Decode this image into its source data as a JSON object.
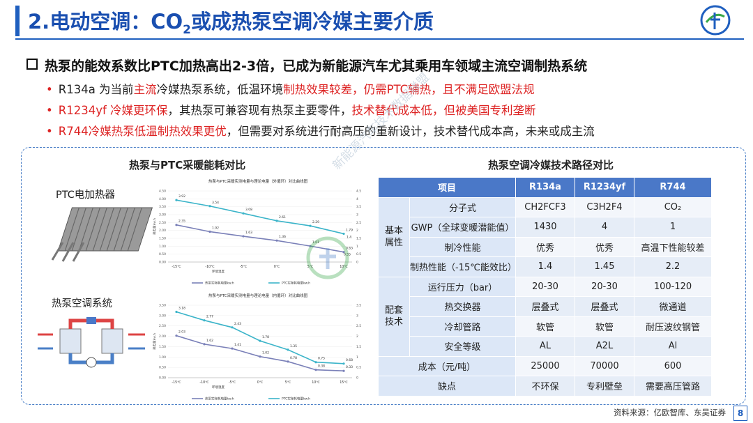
{
  "header": {
    "title_pre": "2.电动空调：CO",
    "title_sub": "2",
    "title_post": "或成热泵空调冷媒主要介质"
  },
  "bullets": {
    "main": "热泵的能效系数比PTC加热高出2-3倍，已成为新能源汽车尤其乘用车领域主流空调制热系统",
    "line1": {
      "dot": "•",
      "a": "R134a 为当前",
      "b": "主流",
      "c": "冷媒热泵系统，低温环境",
      "d": "制热效果较差，仍需PTC辅热，且不满足欧盟法规"
    },
    "line2": {
      "dot": "•",
      "a": "R1234yf 冷媒更环保",
      "b": "，其热泵可兼容现有热泵主要零件，",
      "c": "技术替代成本低，但被美国专利垄断"
    },
    "line3": {
      "dot": "•",
      "a": "R744冷媒热泵低温制热效果更优",
      "b": "，但需要对系统进行耐高压的重新设计，技术替代成本高，未来或成主流"
    }
  },
  "left": {
    "title": "热泵与PTC采暖能耗对比",
    "ptc_label": "PTC电加热器",
    "hp_label": "热泵空调系统"
  },
  "right": {
    "title": "热泵空调冷媒技术路径对比",
    "header": [
      "项目",
      "R134a",
      "R1234yf",
      "R744"
    ],
    "groups": [
      {
        "name": "基本属性",
        "rows": [
          {
            "label": "分子式",
            "v": [
              "CH2FCF3",
              "C3H2F4",
              "CO₂"
            ]
          },
          {
            "label": "GWP（全球变暖潜能值）",
            "v": [
              "1430",
              "4",
              "1"
            ]
          },
          {
            "label": "制冷性能",
            "v": [
              "优秀",
              "优秀",
              "高温下性能较差"
            ]
          },
          {
            "label": "制热性能（-15℃能效比）",
            "v": [
              "1.4",
              "1.45",
              "2.2"
            ]
          }
        ]
      },
      {
        "name": "配套技术",
        "rows": [
          {
            "label": "运行压力（bar）",
            "v": [
              "20-30",
              "20-30",
              "100-120"
            ]
          },
          {
            "label": "热交换器",
            "v": [
              "层叠式",
              "层叠式",
              "微通道"
            ]
          },
          {
            "label": "冷却管路",
            "v": [
              "软管",
              "软管",
              "耐压波纹钢管"
            ]
          },
          {
            "label": "安全等级",
            "v": [
              "AL",
              "A2L",
              "Al"
            ]
          }
        ]
      }
    ],
    "extra": [
      {
        "label": "成本（元/吨）",
        "v": [
          "25000",
          "70000",
          "600"
        ]
      },
      {
        "label": "缺点",
        "v": [
          "不环保",
          "专利壁垒",
          "需要高压管路"
        ]
      }
    ]
  },
  "watermark": "新能源汽车技术数据联盟",
  "source": "资料来源：亿欧智库、东吴证券",
  "page_number": "8",
  "colors": {
    "accent": "#1f5fbf",
    "red": "#d22222",
    "table_head": "#4a78c8"
  },
  "chart_data": [
    {
      "type": "line",
      "title": "热泵与PTC采暖实测电量与理论电量（外循环）对比曲线图",
      "categories": [
        "-15℃",
        "-10℃",
        "-5℃",
        "0℃",
        "5℃",
        "10℃"
      ],
      "ylim": [
        0,
        4.5
      ],
      "y2lim": [
        0,
        4.5
      ],
      "ylabel": "耗电量kw.h",
      "xlabel": "环境温度",
      "series": [
        {
          "name": "热泵实际耗电量kw.h",
          "color": "#7a80b8",
          "values": [
            2.35,
            1.92,
            1.63,
            1.36,
            1.01,
            0.63
          ]
        },
        {
          "name": "PTC实际耗电量kw.h",
          "color": "#3bb4c9",
          "values": [
            3.92,
            3.54,
            3.08,
            2.61,
            2.29,
            1.79
          ]
        }
      ],
      "extra_labels": [
        "0.55",
        "1.4"
      ]
    },
    {
      "type": "line",
      "title": "热泵与PTC采暖实测电量与理论电量（内循环）对比曲线图",
      "categories": [
        "-15℃",
        "-10℃",
        "-5℃",
        "0℃",
        "5℃",
        "10℃",
        "15℃"
      ],
      "ylim": [
        0,
        3.5
      ],
      "y2lim": [
        0,
        3.5
      ],
      "ylabel": "耗电量kw.h",
      "xlabel": "环境温度",
      "series": [
        {
          "name": "热泵实际耗电量kw.h",
          "color": "#7a80b8",
          "values": [
            2.03,
            1.62,
            1.41,
            1.02,
            0.78,
            0.38,
            0.33
          ]
        },
        {
          "name": "PTC实际耗电量kw.h",
          "color": "#3bb4c9",
          "values": [
            3.18,
            2.77,
            2.43,
            1.78,
            1.35,
            0.75,
            0.68
          ]
        }
      ]
    }
  ]
}
